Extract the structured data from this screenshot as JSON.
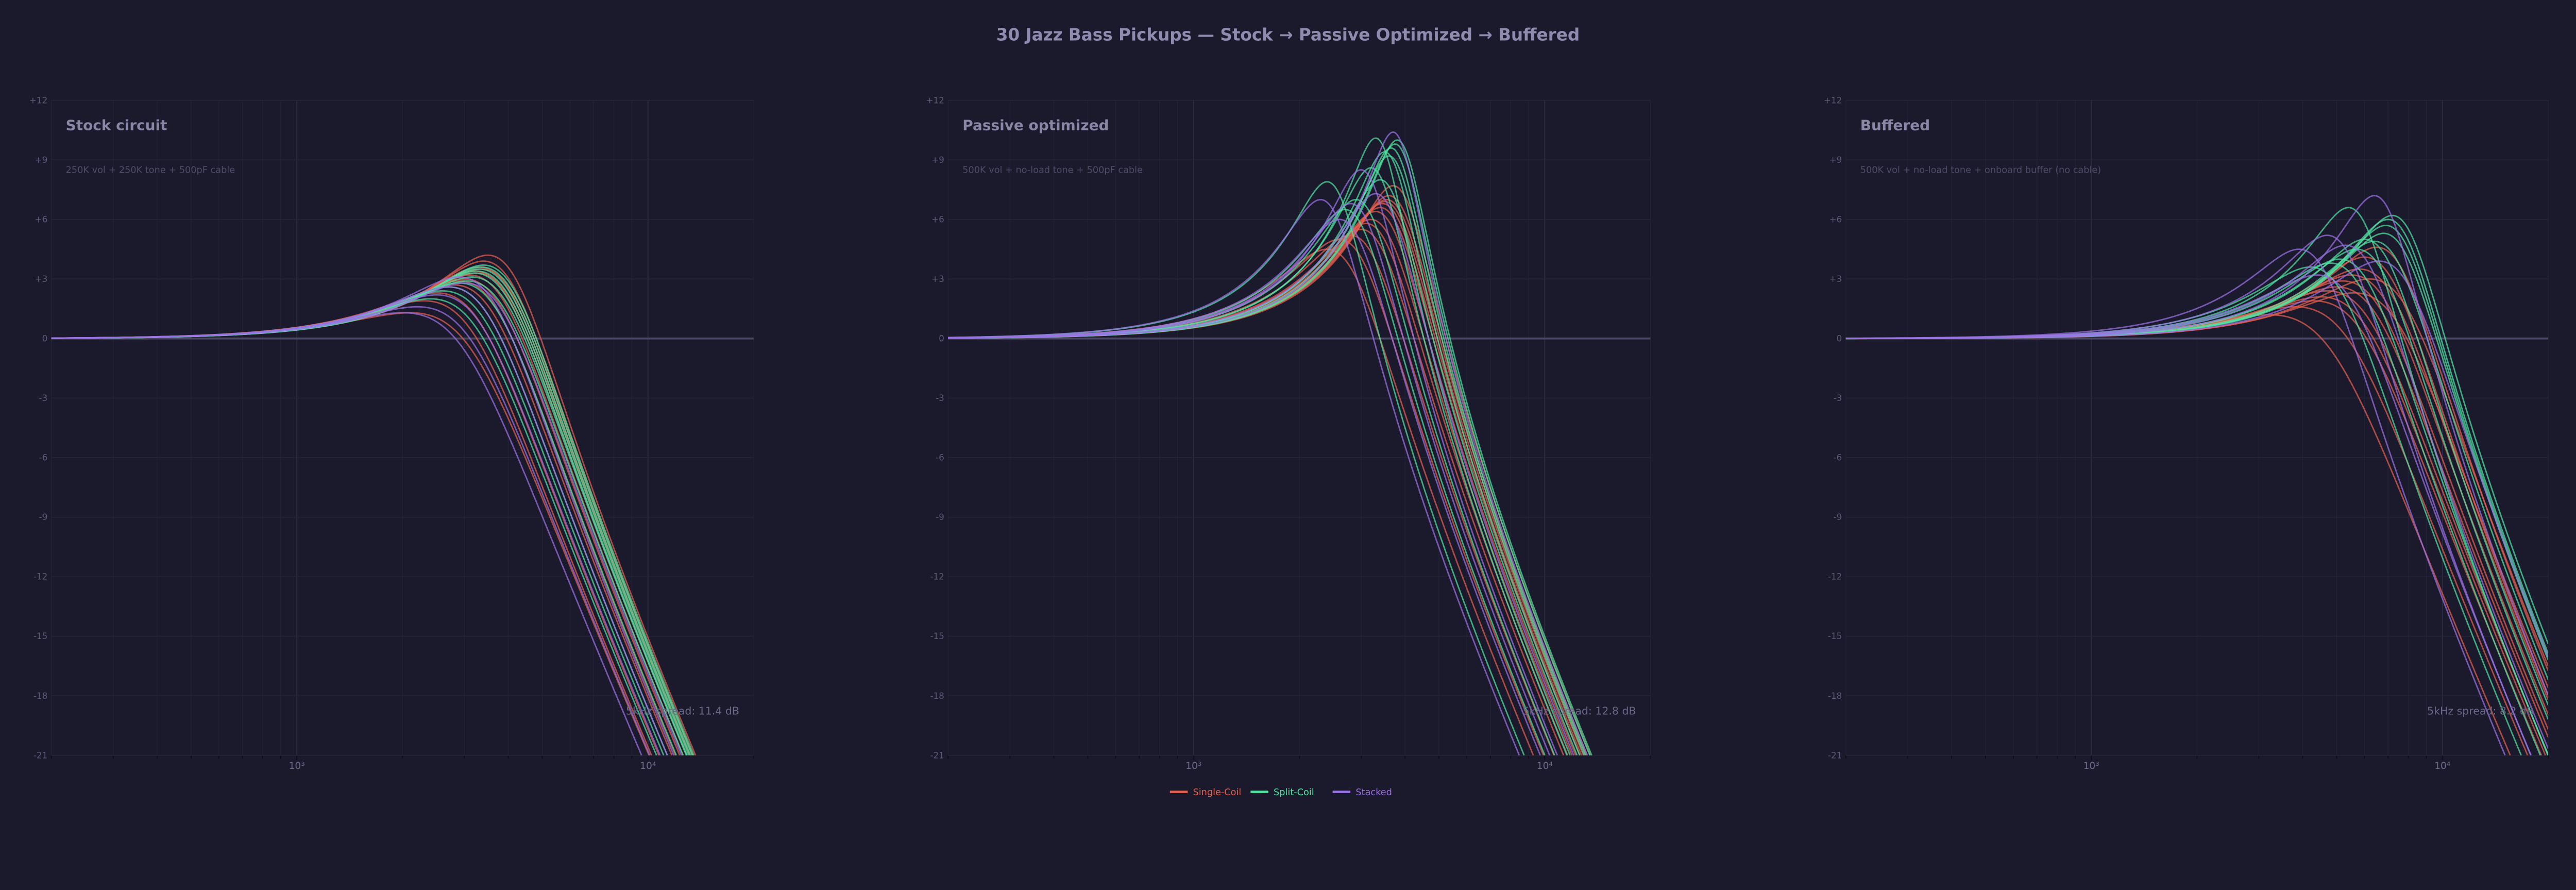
{
  "title": "30 Jazz Bass Pickups — Stock → Passive Optimized → Buffered",
  "colors": {
    "background": "#1b1a2d",
    "single": "#e5604f",
    "split": "#4fe3a1",
    "stacked": "#9b72e6"
  },
  "legend": [
    {
      "key": "single",
      "label": "Single-Coil",
      "color": "#e5604f"
    },
    {
      "key": "split",
      "label": "Split-Coil",
      "color": "#4fe3a1"
    },
    {
      "key": "stacked",
      "label": "Stacked",
      "color": "#9b72e6"
    }
  ],
  "chart_data": [
    {
      "type": "line",
      "title": "Stock circuit",
      "subtitle": "250K vol + 250K tone + 500pF cable",
      "annotation": "5kHz spread: 11.4 dB",
      "x_scale": "log",
      "xlim": [
        200,
        20000
      ],
      "ylim": [
        -21,
        12
      ],
      "grid": true,
      "x_tick_labels": [
        "10³",
        "10⁴"
      ],
      "y_tick_labels": [
        "+12",
        "+9",
        "+6",
        "+3",
        "0",
        "-3",
        "-6",
        "-9",
        "-12",
        "-15",
        "-18",
        "-21"
      ],
      "curves_peak": [
        [
          "single",
          3500,
          4.2
        ],
        [
          "single",
          3400,
          3.9
        ],
        [
          "single",
          3300,
          3.6
        ],
        [
          "single",
          3200,
          3.4
        ],
        [
          "single",
          3100,
          3.2
        ],
        [
          "single",
          3000,
          3.0
        ],
        [
          "single",
          2900,
          2.9
        ],
        [
          "single",
          2800,
          2.7
        ],
        [
          "single",
          3350,
          3.5
        ],
        [
          "single",
          3250,
          3.3
        ],
        [
          "single",
          2100,
          1.3
        ],
        [
          "single",
          2300,
          1.9
        ],
        [
          "single",
          2500,
          2.3
        ],
        [
          "split",
          3400,
          3.7
        ],
        [
          "split",
          3350,
          3.6
        ],
        [
          "split",
          3300,
          3.5
        ],
        [
          "split",
          3250,
          3.4
        ],
        [
          "split",
          3200,
          3.3
        ],
        [
          "split",
          3150,
          3.1
        ],
        [
          "split",
          3050,
          2.9
        ],
        [
          "split",
          2900,
          2.8
        ],
        [
          "split",
          2700,
          2.6
        ],
        [
          "split",
          2600,
          2.4
        ],
        [
          "split",
          2400,
          2.0
        ],
        [
          "stacked",
          2900,
          3.1
        ],
        [
          "stacked",
          2700,
          2.6
        ],
        [
          "stacked",
          2500,
          2.2
        ],
        [
          "stacked",
          2200,
          1.6
        ],
        [
          "stacked",
          2000,
          1.3
        ],
        [
          "stacked",
          3000,
          2.8
        ]
      ]
    },
    {
      "type": "line",
      "title": "Passive optimized",
      "subtitle": "500K vol + no-load tone + 500pF cable",
      "annotation": "5kHz spread: 12.8 dB",
      "x_scale": "log",
      "xlim": [
        200,
        20000
      ],
      "ylim": [
        -21,
        12
      ],
      "grid": true,
      "x_tick_labels": [
        "10³",
        "10⁴"
      ],
      "y_tick_labels": [
        "+12",
        "+9",
        "+6",
        "+3",
        "0",
        "-3",
        "-6",
        "-9",
        "-12",
        "-15",
        "-18",
        "-21"
      ],
      "curves_peak": [
        [
          "single",
          3700,
          7.7
        ],
        [
          "single",
          3600,
          7.2
        ],
        [
          "single",
          3500,
          6.9
        ],
        [
          "single",
          3400,
          6.6
        ],
        [
          "single",
          3300,
          6.4
        ],
        [
          "single",
          3200,
          6.0
        ],
        [
          "single",
          3100,
          5.8
        ],
        [
          "single",
          3000,
          5.5
        ],
        [
          "single",
          3550,
          7.0
        ],
        [
          "single",
          3450,
          6.8
        ],
        [
          "single",
          2400,
          4.5
        ],
        [
          "single",
          2600,
          5.0
        ],
        [
          "single",
          2800,
          5.2
        ],
        [
          "split",
          3800,
          10.0
        ],
        [
          "split",
          3750,
          9.8
        ],
        [
          "split",
          3650,
          9.6
        ],
        [
          "split",
          3500,
          9.4
        ],
        [
          "split",
          3300,
          10.1
        ],
        [
          "split",
          3200,
          8.6
        ],
        [
          "split",
          3600,
          9.2
        ],
        [
          "split",
          2900,
          7.0
        ],
        [
          "split",
          2400,
          7.9
        ],
        [
          "split",
          2700,
          6.5
        ],
        [
          "split",
          3400,
          8.0
        ],
        [
          "stacked",
          3700,
          10.4
        ],
        [
          "stacked",
          3000,
          8.5
        ],
        [
          "stacked",
          2300,
          7.0
        ],
        [
          "stacked",
          2600,
          6.0
        ],
        [
          "stacked",
          2800,
          6.8
        ],
        [
          "stacked",
          3300,
          7.3
        ]
      ]
    },
    {
      "type": "line",
      "title": "Buffered",
      "subtitle": "500K vol + no-load tone + onboard buffer (no cable)",
      "annotation": "5kHz spread: 8.2 dB",
      "x_scale": "log",
      "xlim": [
        200,
        20000
      ],
      "ylim": [
        -21,
        12
      ],
      "grid": true,
      "x_tick_labels": [
        "10³",
        "10⁴"
      ],
      "y_tick_labels": [
        "+12",
        "+9",
        "+6",
        "+3",
        "0",
        "-3",
        "-6",
        "-9",
        "-12",
        "-15",
        "-18",
        "-21"
      ],
      "curves_peak": [
        [
          "single",
          6500,
          4.6
        ],
        [
          "single",
          6000,
          4.1
        ],
        [
          "single",
          5800,
          3.5
        ],
        [
          "single",
          5500,
          3.2
        ],
        [
          "single",
          5200,
          2.9
        ],
        [
          "single",
          5000,
          2.6
        ],
        [
          "single",
          4700,
          2.4
        ],
        [
          "single",
          4500,
          2.1
        ],
        [
          "single",
          6200,
          3.0
        ],
        [
          "single",
          5600,
          2.3
        ],
        [
          "single",
          3200,
          1.2
        ],
        [
          "single",
          3800,
          1.6
        ],
        [
          "single",
          4300,
          1.9
        ],
        [
          "split",
          7200,
          6.2
        ],
        [
          "split",
          7000,
          6.0
        ],
        [
          "split",
          6900,
          5.7
        ],
        [
          "split",
          6800,
          5.3
        ],
        [
          "split",
          5400,
          6.6
        ],
        [
          "split",
          6000,
          5.0
        ],
        [
          "split",
          5700,
          4.5
        ],
        [
          "split",
          4800,
          3.8
        ],
        [
          "split",
          4200,
          3.6
        ],
        [
          "split",
          6400,
          4.9
        ],
        [
          "split",
          5100,
          4.0
        ],
        [
          "stacked",
          6400,
          7.2
        ],
        [
          "stacked",
          4700,
          5.2
        ],
        [
          "stacked",
          3900,
          4.5
        ],
        [
          "stacked",
          5300,
          4.7
        ],
        [
          "stacked",
          6600,
          3.9
        ],
        [
          "stacked",
          4400,
          3.2
        ]
      ]
    }
  ]
}
